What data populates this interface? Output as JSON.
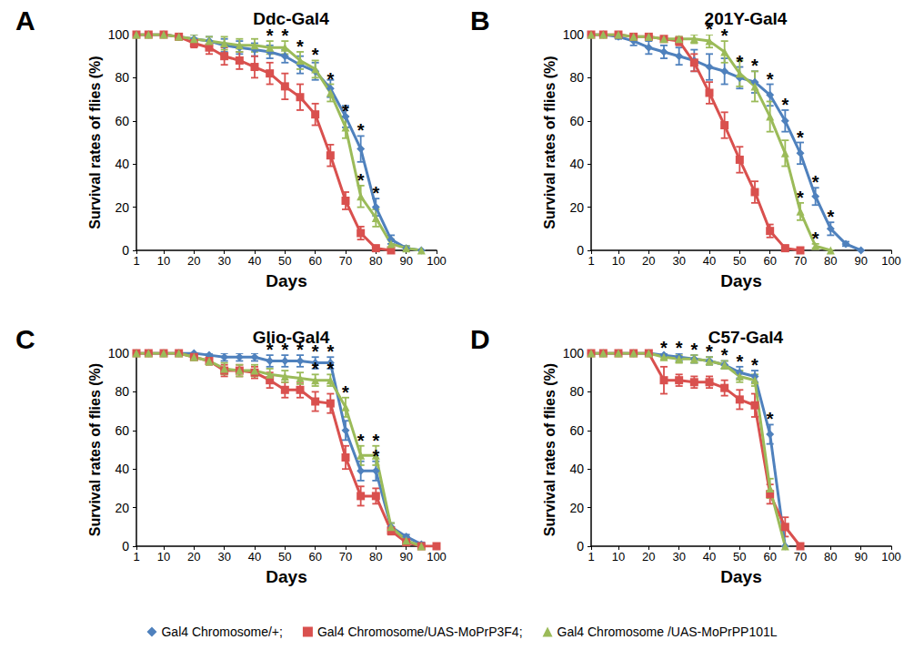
{
  "chart_data": [
    {
      "type": "line",
      "panel": "A",
      "title": "Ddc-Gal4",
      "xlabel": "Days",
      "ylabel": "Survival rates of flies (%)",
      "xlim": [
        1,
        100
      ],
      "xticks": [
        1,
        10,
        20,
        30,
        40,
        50,
        60,
        70,
        80,
        90,
        100
      ],
      "ylim": [
        0,
        100
      ],
      "yticks": [
        0,
        20,
        40,
        60,
        80,
        100
      ],
      "grid": false,
      "legend": "bottom",
      "significance_mark": "*",
      "x": [
        1,
        5,
        10,
        15,
        20,
        25,
        30,
        35,
        40,
        45,
        50,
        55,
        60,
        65,
        70,
        75,
        80,
        85,
        90,
        95
      ],
      "series": [
        {
          "name": "Gal4 Chromosome/+;",
          "color": "#4f81bd",
          "marker": "diamond",
          "values": [
            100,
            100,
            100,
            99,
            98,
            97,
            95,
            94,
            93,
            92,
            90,
            86,
            83,
            75,
            62,
            47,
            20,
            5,
            1,
            0
          ],
          "errors": [
            0,
            0,
            0,
            1,
            2,
            2,
            3,
            3,
            3,
            3,
            3,
            4,
            4,
            4,
            5,
            6,
            4,
            2,
            1,
            0
          ],
          "significant_days": [
            75,
            80
          ]
        },
        {
          "name": "Gal4 Chromosome/UAS-MoPrP3F4;",
          "color": "#d9504e",
          "marker": "square",
          "values": [
            100,
            100,
            100,
            99,
            96,
            94,
            90,
            88,
            85,
            82,
            76,
            71,
            63,
            44,
            23,
            8,
            1,
            0,
            null,
            null
          ],
          "errors": [
            0,
            0,
            0,
            1,
            2,
            3,
            4,
            4,
            5,
            5,
            6,
            6,
            5,
            5,
            4,
            3,
            1,
            0,
            null,
            null
          ],
          "significant_days": []
        },
        {
          "name": "Gal4 Chromosome /UAS-MoPrPP101L",
          "color": "#9bbb59",
          "marker": "triangle",
          "values": [
            100,
            100,
            100,
            99,
            98,
            97,
            96,
            95,
            95,
            94,
            94,
            88,
            84,
            73,
            57,
            25,
            15,
            3,
            1,
            0
          ],
          "errors": [
            0,
            0,
            0,
            1,
            2,
            2,
            3,
            3,
            3,
            3,
            3,
            4,
            4,
            4,
            5,
            5,
            4,
            2,
            1,
            0
          ],
          "significant_days": [
            45,
            50,
            55,
            60,
            65,
            70,
            75
          ]
        }
      ]
    },
    {
      "type": "line",
      "panel": "B",
      "title": "201Y-Gal4",
      "xlabel": "Days",
      "ylabel": "Survival rates of flies (%)",
      "xlim": [
        1,
        100
      ],
      "xticks": [
        1,
        10,
        20,
        30,
        40,
        50,
        60,
        70,
        80,
        90,
        100
      ],
      "ylim": [
        0,
        100
      ],
      "yticks": [
        0,
        20,
        40,
        60,
        80,
        100
      ],
      "grid": false,
      "legend": "bottom",
      "significance_mark": "*",
      "x": [
        1,
        5,
        10,
        15,
        20,
        25,
        30,
        35,
        40,
        45,
        50,
        55,
        60,
        65,
        70,
        75,
        80,
        85,
        90
      ],
      "series": [
        {
          "name": "Gal4 Chromosome/+;",
          "color": "#4f81bd",
          "marker": "diamond",
          "values": [
            100,
            100,
            99,
            97,
            94,
            92,
            90,
            88,
            85,
            83,
            80,
            78,
            72,
            60,
            45,
            25,
            10,
            3,
            0
          ],
          "errors": [
            0,
            0,
            1,
            2,
            3,
            3,
            4,
            5,
            6,
            6,
            5,
            5,
            5,
            5,
            5,
            4,
            3,
            1,
            0
          ],
          "significant_days": [
            50,
            55,
            60,
            65,
            70,
            75,
            80
          ]
        },
        {
          "name": "Gal4 Chromosome/UAS-MoPrP3F4;",
          "color": "#d9504e",
          "marker": "square",
          "values": [
            100,
            100,
            100,
            99,
            99,
            98,
            97,
            87,
            73,
            58,
            42,
            27,
            9,
            1,
            0,
            null,
            null,
            null,
            null
          ],
          "errors": [
            0,
            0,
            0,
            1,
            1,
            1,
            2,
            4,
            5,
            6,
            6,
            5,
            3,
            1,
            0,
            null,
            null,
            null,
            null
          ],
          "significant_days": []
        },
        {
          "name": "Gal4 Chromosome /UAS-MoPrPP101L",
          "color": "#9bbb59",
          "marker": "triangle",
          "values": [
            100,
            100,
            100,
            99,
            99,
            98,
            98,
            98,
            97,
            92,
            82,
            76,
            62,
            45,
            18,
            2,
            0,
            null,
            null
          ],
          "errors": [
            0,
            0,
            0,
            1,
            1,
            1,
            1,
            2,
            3,
            5,
            6,
            7,
            7,
            6,
            4,
            1,
            0,
            null,
            null
          ],
          "significant_days": [
            40,
            45,
            70,
            75
          ]
        }
      ]
    },
    {
      "type": "line",
      "panel": "C",
      "title": "Glio-Gal4",
      "xlabel": "Days",
      "ylabel": "Survival rates of flies (%)",
      "xlim": [
        1,
        100
      ],
      "xticks": [
        1,
        10,
        20,
        30,
        40,
        50,
        60,
        70,
        80,
        90,
        100
      ],
      "ylim": [
        0,
        100
      ],
      "yticks": [
        0,
        20,
        40,
        60,
        80,
        100
      ],
      "grid": false,
      "legend": "bottom",
      "significance_mark": "*",
      "x": [
        1,
        5,
        10,
        15,
        20,
        25,
        30,
        35,
        40,
        45,
        50,
        55,
        60,
        65,
        70,
        75,
        80,
        85,
        90,
        95,
        100
      ],
      "series": [
        {
          "name": "Gal4 Chromosome/+;",
          "color": "#4f81bd",
          "marker": "diamond",
          "values": [
            100,
            100,
            100,
            100,
            100,
            99,
            98,
            98,
            98,
            96,
            96,
            96,
            95,
            95,
            60,
            39,
            39,
            10,
            5,
            1,
            null
          ],
          "errors": [
            0,
            0,
            0,
            0,
            0,
            1,
            2,
            2,
            2,
            3,
            3,
            3,
            3,
            3,
            5,
            5,
            5,
            2,
            1,
            1,
            null
          ],
          "significant_days": [
            45,
            50,
            55,
            60,
            65,
            80
          ]
        },
        {
          "name": "Gal4 Chromosome/UAS-MoPrP3F4;",
          "color": "#d9504e",
          "marker": "square",
          "values": [
            100,
            100,
            100,
            100,
            98,
            96,
            91,
            91,
            90,
            86,
            81,
            81,
            75,
            74,
            46,
            26,
            26,
            8,
            2,
            0,
            0
          ],
          "errors": [
            0,
            0,
            0,
            0,
            1,
            2,
            3,
            3,
            3,
            4,
            4,
            4,
            5,
            5,
            6,
            5,
            4,
            2,
            1,
            0,
            0
          ],
          "significant_days": []
        },
        {
          "name": "Gal4 Chromosome /UAS-MoPrPP101L",
          "color": "#9bbb59",
          "marker": "triangle",
          "values": [
            100,
            100,
            100,
            100,
            98,
            96,
            92,
            91,
            91,
            89,
            88,
            87,
            86,
            86,
            72,
            47,
            47,
            10,
            3,
            0,
            null
          ],
          "errors": [
            0,
            0,
            0,
            0,
            1,
            2,
            3,
            3,
            3,
            3,
            3,
            3,
            3,
            3,
            5,
            5,
            5,
            2,
            1,
            0,
            null
          ],
          "significant_days": [
            60,
            65,
            70,
            75,
            80
          ]
        }
      ]
    },
    {
      "type": "line",
      "panel": "D",
      "title": "C57-Gal4",
      "xlabel": "Days",
      "ylabel": "Survival rates of flies (%)",
      "xlim": [
        1,
        100
      ],
      "xticks": [
        1,
        10,
        20,
        30,
        40,
        50,
        60,
        70,
        80,
        90,
        100
      ],
      "ylim": [
        0,
        100
      ],
      "yticks": [
        0,
        20,
        40,
        60,
        80,
        100
      ],
      "grid": false,
      "legend": "bottom",
      "significance_mark": "*",
      "x": [
        1,
        5,
        10,
        15,
        20,
        25,
        30,
        35,
        40,
        45,
        50,
        55,
        60,
        65,
        70
      ],
      "series": [
        {
          "name": "Gal4 Chromosome/+;",
          "color": "#4f81bd",
          "marker": "diamond",
          "values": [
            100,
            100,
            100,
            100,
            100,
            99,
            98,
            97,
            96,
            94,
            90,
            88,
            58,
            0,
            null
          ],
          "errors": [
            0,
            0,
            0,
            0,
            0,
            1,
            2,
            2,
            2,
            2,
            3,
            3,
            5,
            0,
            null
          ],
          "significant_days": [
            25,
            30,
            35,
            40,
            45,
            50,
            55,
            60
          ]
        },
        {
          "name": "Gal4 Chromosome/UAS-MoPrP3F4;",
          "color": "#d9504e",
          "marker": "square",
          "values": [
            100,
            100,
            100,
            100,
            100,
            86,
            86,
            85,
            85,
            82,
            76,
            73,
            27,
            10,
            0
          ],
          "errors": [
            0,
            0,
            0,
            0,
            0,
            7,
            3,
            3,
            3,
            4,
            5,
            6,
            5,
            5,
            0
          ],
          "significant_days": []
        },
        {
          "name": "Gal4 Chromosome /UAS-MoPrPP101L",
          "color": "#9bbb59",
          "marker": "triangle",
          "values": [
            100,
            100,
            100,
            100,
            100,
            98,
            97,
            97,
            96,
            94,
            88,
            86,
            30,
            0,
            null
          ],
          "errors": [
            0,
            0,
            0,
            0,
            0,
            1,
            2,
            2,
            2,
            2,
            3,
            3,
            5,
            0,
            null
          ],
          "significant_days": []
        }
      ]
    }
  ]
}
